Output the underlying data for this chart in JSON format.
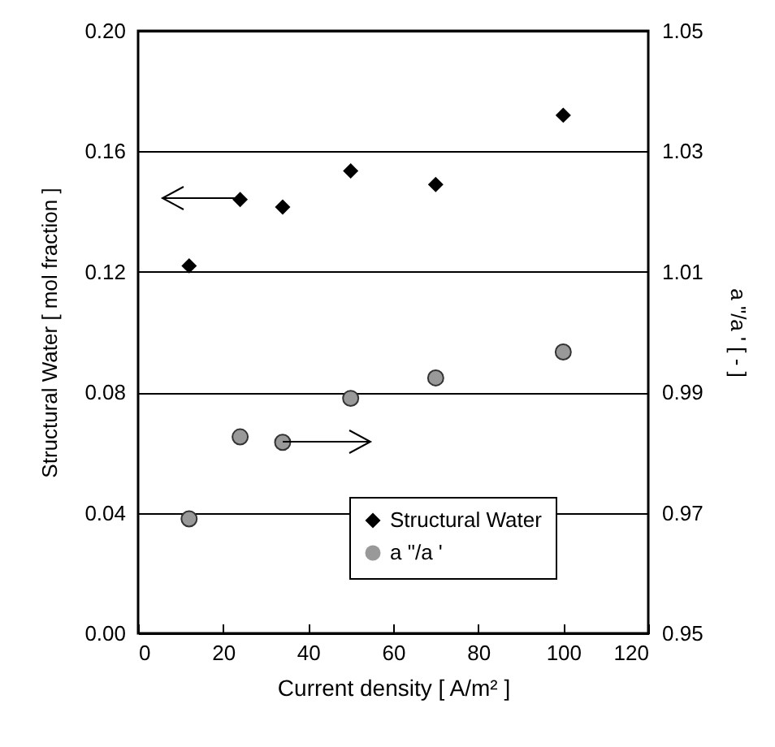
{
  "chart_data": {
    "type": "scatter",
    "xlabel": "Current density [ A/m² ]",
    "ylabel": "Structural Water [ mol fraction ]",
    "y2label": "a \"/a ' [ - ]",
    "x": [
      12,
      24,
      34,
      50,
      70,
      100
    ],
    "series": [
      {
        "name": "Structural Water",
        "color": "#000000",
        "marker": "diamond",
        "values": [
          0.122,
          0.144,
          0.1415,
          0.1535,
          0.149,
          0.172
        ]
      },
      {
        "name": "a \"/a '",
        "color": "#999999",
        "marker": "circle",
        "axis": "y2",
        "values": [
          0.969,
          0.9826,
          0.9817,
          0.989,
          0.9924,
          0.9967
        ]
      }
    ],
    "xlim": [
      0,
      120
    ],
    "xticks": [
      0,
      20,
      40,
      60,
      80,
      100,
      120
    ],
    "ylim": [
      0,
      0.2
    ],
    "yticks": [
      {
        "value": 0,
        "label": "0.00"
      },
      0.04,
      0.08,
      0.12,
      0.16,
      {
        "value": 0.2,
        "label": "0.20"
      }
    ],
    "y2lim": [
      0.95,
      1.05
    ],
    "y2ticks": [
      0.95,
      0.97,
      0.99,
      1.01,
      1.03,
      1.05
    ],
    "grid": "y",
    "legend": "bottom right"
  }
}
